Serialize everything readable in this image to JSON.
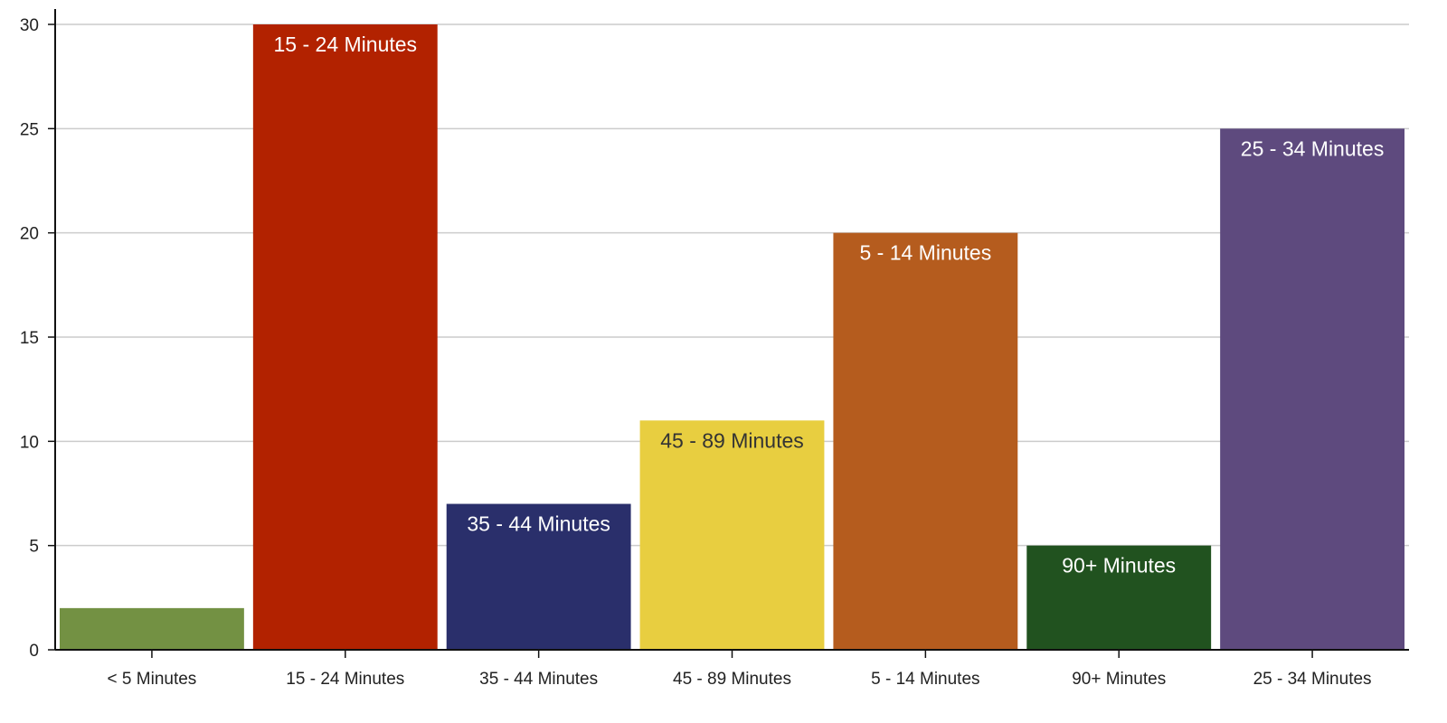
{
  "chart_data": {
    "type": "bar",
    "categories": [
      "< 5 Minutes",
      "15 - 24 Minutes",
      "35 - 44 Minutes",
      "45 - 89 Minutes",
      "5 - 14 Minutes",
      "90+ Minutes",
      "25 - 34 Minutes"
    ],
    "values": [
      2,
      30,
      7,
      11,
      20,
      5,
      25
    ],
    "data_labels": [
      "",
      "15 - 24 Minutes",
      "35 - 44 Minutes",
      "45 - 89 Minutes",
      "5 - 14 Minutes",
      "90+ Minutes",
      "25 - 34 Minutes"
    ],
    "colors": [
      "#739143",
      "#b22200",
      "#2a2f6b",
      "#e8ce40",
      "#b55c1e",
      "#21521f",
      "#5e4a7e"
    ],
    "label_colors": [
      "#ffffff",
      "#ffffff",
      "#ffffff",
      "#333333",
      "#ffffff",
      "#ffffff",
      "#ffffff"
    ],
    "ylim": [
      0,
      30
    ],
    "yticks": [
      0,
      5,
      10,
      15,
      20,
      25,
      30
    ],
    "grid": true,
    "title": "",
    "xlabel": "",
    "ylabel": ""
  }
}
